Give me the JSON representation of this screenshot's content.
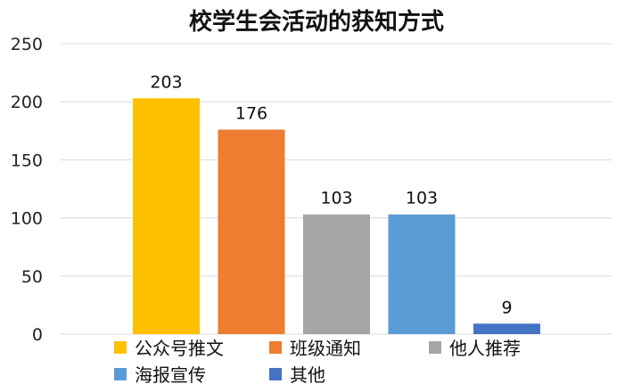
{
  "chart_data": {
    "type": "bar",
    "title": "校学生会活动的获知方式",
    "categories": [
      "公众号推文",
      "班级通知",
      "他人推荐",
      "海报宣传",
      "其他"
    ],
    "values": [
      203,
      176,
      103,
      103,
      9
    ],
    "colors": [
      "#FFC000",
      "#ED7D31",
      "#A5A5A5",
      "#5B9BD5",
      "#4472C4"
    ],
    "ylim": [
      0,
      250
    ],
    "yticks": [
      0,
      50,
      100,
      150,
      200,
      250
    ],
    "grid": true,
    "legend": "bottom",
    "data_labels": true
  }
}
